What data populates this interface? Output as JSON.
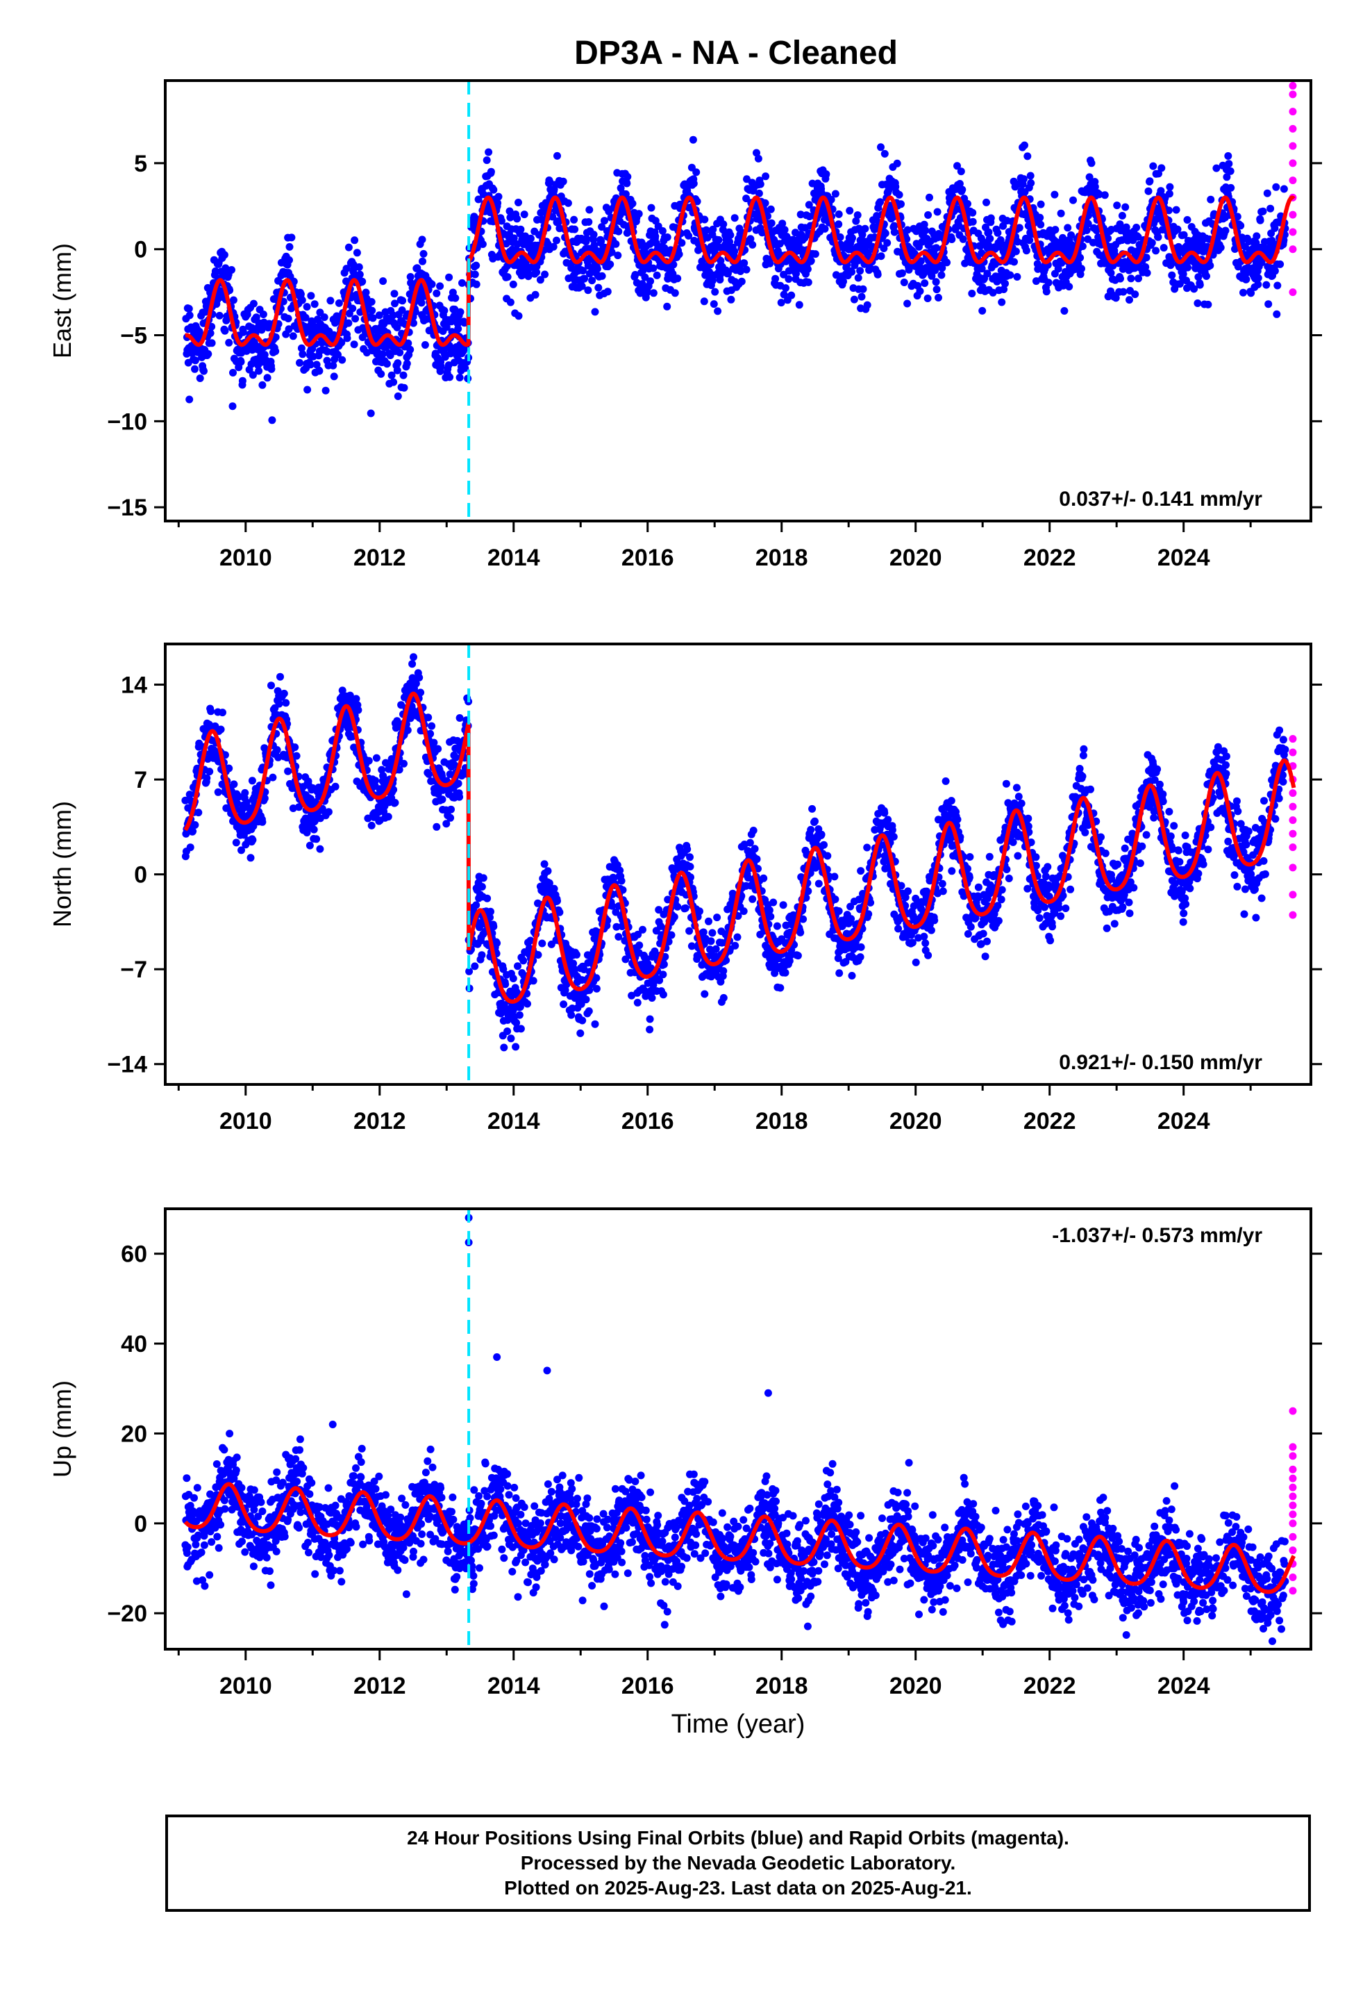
{
  "title": "DP3A  - NA - Cleaned",
  "colors": {
    "final_orbits": "#0000ff",
    "rapid_orbits": "#ff00ff",
    "model_fit": "#ff0000",
    "offset_marker": "#00e5ff",
    "frame": "#000000"
  },
  "chart_data": [
    {
      "type": "scatter",
      "component": "East",
      "ylabel": "East (mm)",
      "xlabel": "",
      "xlim": [
        2008.8,
        2025.9
      ],
      "ylim": [
        -15.8,
        9.8
      ],
      "xticks": [
        2010,
        2012,
        2014,
        2016,
        2018,
        2020,
        2022,
        2024
      ],
      "yticks": [
        -15,
        -10,
        -5,
        0,
        5
      ],
      "velocity_label": "0.037+/- 0.141 mm/yr",
      "velocity_label_position": "bottom-right",
      "offset_epoch": 2013.33,
      "model": {
        "segments": [
          {
            "start": 2009.1,
            "end": 2013.33,
            "offset": -4.3,
            "trend": 0.0
          },
          {
            "start": 2013.33,
            "end": 2025.65,
            "offset": 0.5,
            "trend": 0.0
          }
        ],
        "annual_amplitude": 1.6,
        "semiannual_amplitude": 0.9,
        "phase_year": 0.62
      },
      "scatter_sigma": 1.2,
      "final_orbits_range": [
        2009.1,
        2025.52
      ],
      "rapid_orbits_range": [
        2025.52,
        2025.64
      ],
      "rapid_values": [
        9.5,
        9.0,
        8.0,
        7.0,
        6.0,
        5.0,
        4.0,
        3.0,
        2.0,
        1.0,
        0.0,
        -2.5
      ]
    },
    {
      "type": "scatter",
      "component": "North",
      "ylabel": "North (mm)",
      "xlabel": "",
      "xlim": [
        2008.8,
        2025.9
      ],
      "ylim": [
        -15.5,
        17.0
      ],
      "xticks": [
        2010,
        2012,
        2014,
        2016,
        2018,
        2020,
        2022,
        2024
      ],
      "yticks": [
        -14,
        -7,
        0,
        7,
        14
      ],
      "velocity_label": "0.921+/- 0.150 mm/yr",
      "velocity_label_position": "bottom-right",
      "offset_epoch": 2013.33,
      "model": {
        "segments": [
          {
            "start": 2009.1,
            "end": 2013.33,
            "offset": 6.0,
            "trend": 0.92,
            "ref": 2009.1
          },
          {
            "start": 2013.33,
            "end": 2025.65,
            "offset": -7.0,
            "trend": 0.92,
            "ref": 2013.33
          }
        ],
        "annual_amplitude": 3.6,
        "semiannual_amplitude": 0.6,
        "phase_year": 0.5
      },
      "scatter_sigma": 1.3,
      "final_orbits_range": [
        2009.1,
        2025.52
      ],
      "rapid_orbits_range": [
        2025.52,
        2025.64
      ],
      "rapid_values": [
        10.0,
        9.0,
        8.0,
        7.0,
        6.0,
        5.0,
        4.0,
        3.0,
        2.0,
        0.5,
        -1.5,
        -3.0
      ]
    },
    {
      "type": "scatter",
      "component": "Up",
      "ylabel": "Up (mm)",
      "xlabel": "Time (year)",
      "xlim": [
        2008.8,
        2025.9
      ],
      "ylim": [
        -28.0,
        70.0
      ],
      "xticks": [
        2010,
        2012,
        2014,
        2016,
        2018,
        2020,
        2022,
        2024
      ],
      "yticks": [
        -20,
        0,
        20,
        40,
        60
      ],
      "velocity_label": "-1.037+/- 0.573 mm/yr",
      "velocity_label_position": "top-right",
      "offset_epoch": 2013.33,
      "model": {
        "segments": [
          {
            "start": 2009.1,
            "end": 2025.65,
            "offset": 3.5,
            "trend": -0.9,
            "ref": 2009.1
          }
        ],
        "annual_amplitude": 5.0,
        "semiannual_amplitude": 0.8,
        "phase_year": 0.75
      },
      "scatter_sigma": 4.5,
      "final_orbits_range": [
        2009.1,
        2025.52
      ],
      "rapid_orbits_range": [
        2025.52,
        2025.64
      ],
      "rapid_values": [
        25.0,
        17.0,
        15.0,
        12.0,
        10.0,
        8.0,
        6.0,
        4.0,
        2.0,
        0.0,
        -3.0,
        -6.0,
        -9.0,
        -12.0,
        -15.0
      ],
      "outliers": [
        [
          2013.33,
          68.0
        ],
        [
          2013.33,
          62.5
        ],
        [
          2014.5,
          34.0
        ],
        [
          2013.75,
          37.0
        ],
        [
          2017.8,
          29.0
        ],
        [
          2011.3,
          22.0
        ]
      ]
    }
  ],
  "footer": {
    "line1": "24 Hour Positions Using Final Orbits (blue) and Rapid Orbits (magenta).",
    "line2": "Processed by the Nevada Geodetic Laboratory.",
    "line3": "Plotted on 2025-Aug-23. Last data on 2025-Aug-21."
  }
}
